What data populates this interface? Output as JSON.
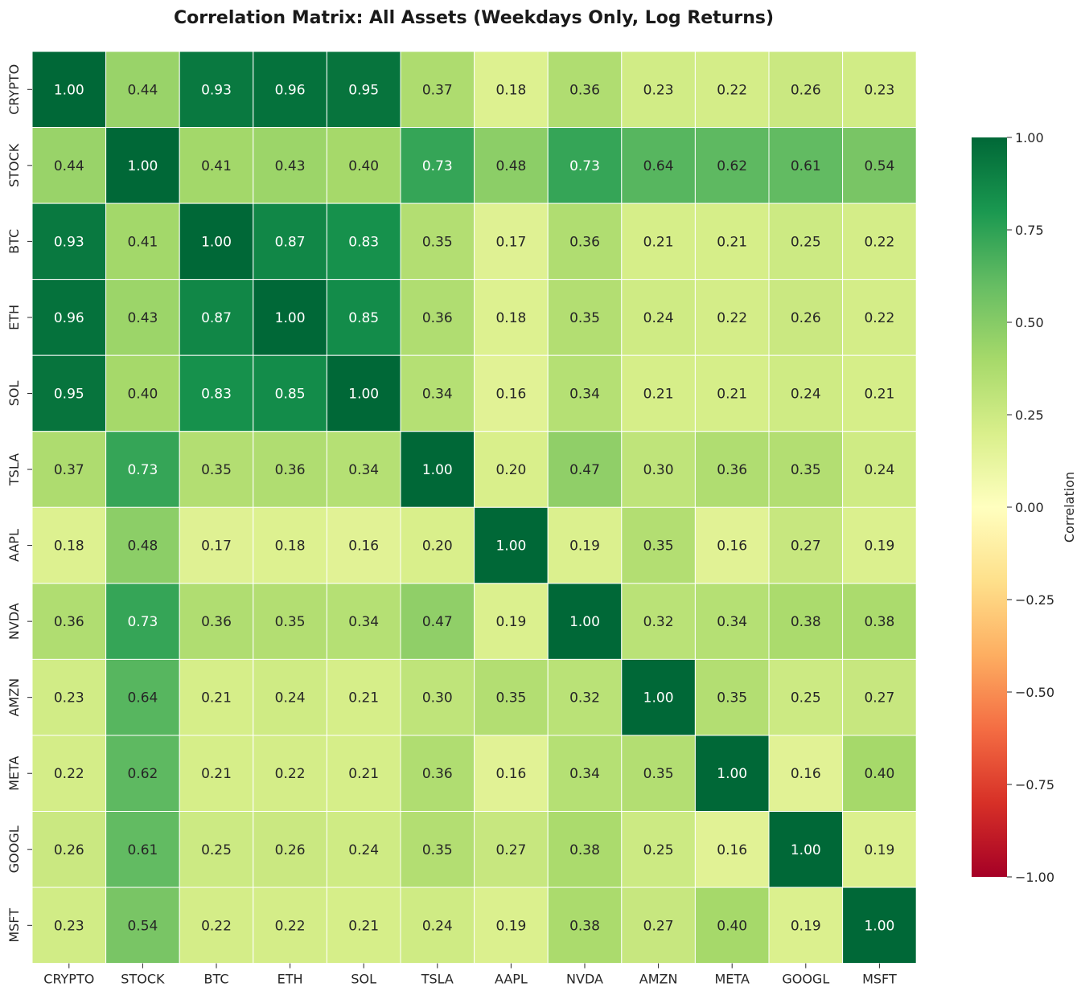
{
  "chart_data": {
    "type": "heatmap",
    "title": "Correlation Matrix: All Assets (Weekdays Only, Log Returns)",
    "row_labels": [
      "CRYPTO",
      "STOCK",
      "BTC",
      "ETH",
      "SOL",
      "TSLA",
      "AAPL",
      "NVDA",
      "AMZN",
      "META",
      "GOOGL",
      "MSFT"
    ],
    "col_labels": [
      "CRYPTO",
      "STOCK",
      "BTC",
      "ETH",
      "SOL",
      "TSLA",
      "AAPL",
      "NVDA",
      "AMZN",
      "META",
      "GOOGL",
      "MSFT"
    ],
    "values": [
      [
        1.0,
        0.44,
        0.93,
        0.96,
        0.95,
        0.37,
        0.18,
        0.36,
        0.23,
        0.22,
        0.26,
        0.23
      ],
      [
        0.44,
        1.0,
        0.41,
        0.43,
        0.4,
        0.73,
        0.48,
        0.73,
        0.64,
        0.62,
        0.61,
        0.54
      ],
      [
        0.93,
        0.41,
        1.0,
        0.87,
        0.83,
        0.35,
        0.17,
        0.36,
        0.21,
        0.21,
        0.25,
        0.22
      ],
      [
        0.96,
        0.43,
        0.87,
        1.0,
        0.85,
        0.36,
        0.18,
        0.35,
        0.24,
        0.22,
        0.26,
        0.22
      ],
      [
        0.95,
        0.4,
        0.83,
        0.85,
        1.0,
        0.34,
        0.16,
        0.34,
        0.21,
        0.21,
        0.24,
        0.21
      ],
      [
        0.37,
        0.73,
        0.35,
        0.36,
        0.34,
        1.0,
        0.2,
        0.47,
        0.3,
        0.36,
        0.35,
        0.24
      ],
      [
        0.18,
        0.48,
        0.17,
        0.18,
        0.16,
        0.2,
        1.0,
        0.19,
        0.35,
        0.16,
        0.27,
        0.19
      ],
      [
        0.36,
        0.73,
        0.36,
        0.35,
        0.34,
        0.47,
        0.19,
        1.0,
        0.32,
        0.34,
        0.38,
        0.38
      ],
      [
        0.23,
        0.64,
        0.21,
        0.24,
        0.21,
        0.3,
        0.35,
        0.32,
        1.0,
        0.35,
        0.25,
        0.27
      ],
      [
        0.22,
        0.62,
        0.21,
        0.22,
        0.21,
        0.36,
        0.16,
        0.34,
        0.35,
        1.0,
        0.16,
        0.4
      ],
      [
        0.26,
        0.61,
        0.25,
        0.26,
        0.24,
        0.35,
        0.27,
        0.38,
        0.25,
        0.16,
        1.0,
        0.19
      ],
      [
        0.23,
        0.54,
        0.22,
        0.22,
        0.21,
        0.24,
        0.19,
        0.38,
        0.27,
        0.4,
        0.19,
        1.0
      ]
    ],
    "value_format": "2 decimals",
    "colormap": "RdYlGn",
    "vmin": -1.0,
    "vmax": 1.0,
    "colorbar": {
      "label": "Correlation",
      "ticks": [
        1.0,
        0.75,
        0.5,
        0.25,
        0.0,
        -0.25,
        -0.5,
        -0.75,
        -1.0
      ],
      "tick_labels": [
        "1.00",
        "0.75",
        "0.50",
        "0.25",
        "0.00",
        "−0.25",
        "−0.50",
        "−0.75",
        "−1.00"
      ],
      "position": "right"
    },
    "grid_lines": "white"
  }
}
